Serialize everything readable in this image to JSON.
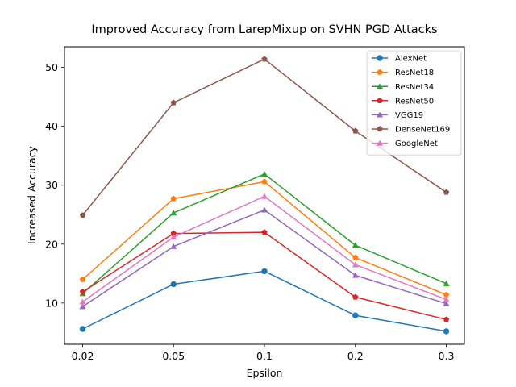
{
  "chart_data": {
    "type": "line",
    "title": "Improved Accuracy from LarepMixup on SVHN PGD Attacks",
    "xlabel": "Epsilon",
    "ylabel": "Increased Accuracy",
    "categories": [
      "0.02",
      "0.05",
      "0.1",
      "0.2",
      "0.3"
    ],
    "ylim": [
      3,
      53.5
    ],
    "yticks": [
      10,
      20,
      30,
      40,
      50
    ],
    "grid": false,
    "legend_position": "top-right",
    "series": [
      {
        "name": "AlexNet",
        "color": "#1f77b4",
        "marker": "circle",
        "values": [
          5.6,
          13.2,
          15.4,
          7.9,
          5.2
        ]
      },
      {
        "name": "ResNet18",
        "color": "#ff7f0e",
        "marker": "pentagon",
        "values": [
          14.0,
          27.7,
          30.6,
          17.7,
          11.4
        ]
      },
      {
        "name": "ResNet34",
        "color": "#2ca02c",
        "marker": "triangle",
        "values": [
          11.6,
          25.3,
          31.9,
          19.8,
          13.3
        ]
      },
      {
        "name": "ResNet50",
        "color": "#d62728",
        "marker": "pentagon",
        "values": [
          11.9,
          21.8,
          22.0,
          11.0,
          7.2
        ]
      },
      {
        "name": "VGG19",
        "color": "#9467bd",
        "marker": "triangle",
        "values": [
          9.4,
          19.6,
          25.8,
          14.7,
          9.9
        ]
      },
      {
        "name": "DenseNet169",
        "color": "#8c564b",
        "marker": "pentagon",
        "values": [
          24.9,
          44.0,
          51.4,
          39.2,
          28.8
        ]
      },
      {
        "name": "GoogleNet",
        "color": "#e377c2",
        "marker": "triangle",
        "values": [
          10.2,
          21.2,
          28.1,
          16.5,
          10.6
        ]
      }
    ]
  }
}
